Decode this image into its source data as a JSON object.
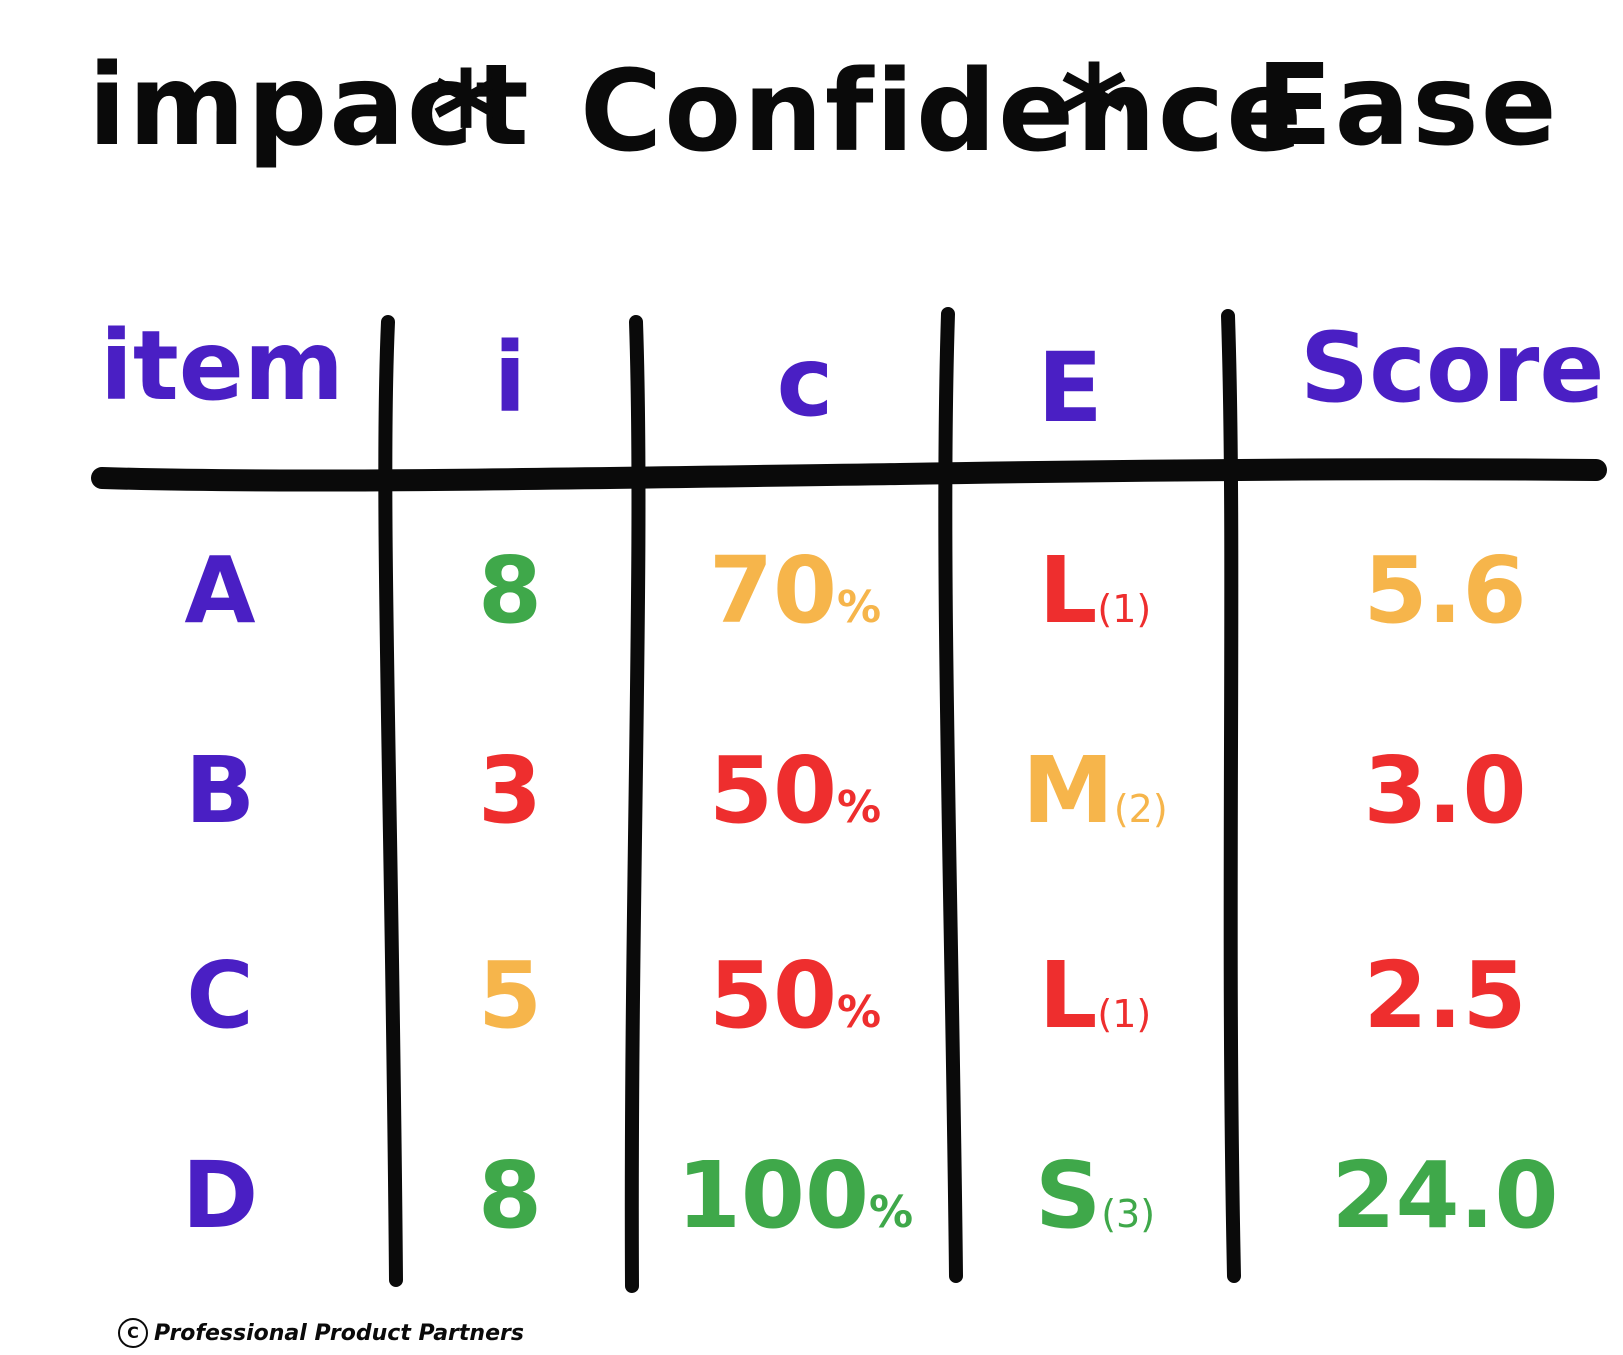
{
  "title": {
    "part1": "impact",
    "op1": "*",
    "part2": "Confidence",
    "op2": "*",
    "part3": "Ease"
  },
  "colors": {
    "purple": "#4a1fc4",
    "green": "#3fa84a",
    "orange": "#f6b54b",
    "red": "#ee2e2e",
    "ink": "#0a0a0a"
  },
  "table": {
    "headers": {
      "item": "item",
      "i": "i",
      "c": "c",
      "e": "E",
      "score": "Score"
    },
    "rows": [
      {
        "item": "A",
        "i": "8",
        "c": "70",
        "c_unit": "%",
        "e": "L",
        "e_num": "(1)",
        "score": "5.6",
        "colors": {
          "i": "green",
          "c": "orange",
          "e": "red",
          "score": "orange"
        }
      },
      {
        "item": "B",
        "i": "3",
        "c": "50",
        "c_unit": "%",
        "e": "M",
        "e_num": "(2)",
        "score": "3.0",
        "colors": {
          "i": "red",
          "c": "red",
          "e": "orange",
          "score": "red"
        }
      },
      {
        "item": "C",
        "i": "5",
        "c": "50",
        "c_unit": "%",
        "e": "L",
        "e_num": "(1)",
        "score": "2.5",
        "colors": {
          "i": "orange",
          "c": "red",
          "e": "red",
          "score": "red"
        }
      },
      {
        "item": "D",
        "i": "8",
        "c": "100",
        "c_unit": "%",
        "e": "S",
        "e_num": "(3)",
        "score": "24.0",
        "colors": {
          "i": "green",
          "c": "green",
          "e": "green",
          "score": "green"
        }
      }
    ]
  },
  "footer": {
    "symbol": "C",
    "text": "Professional Product Partners"
  }
}
